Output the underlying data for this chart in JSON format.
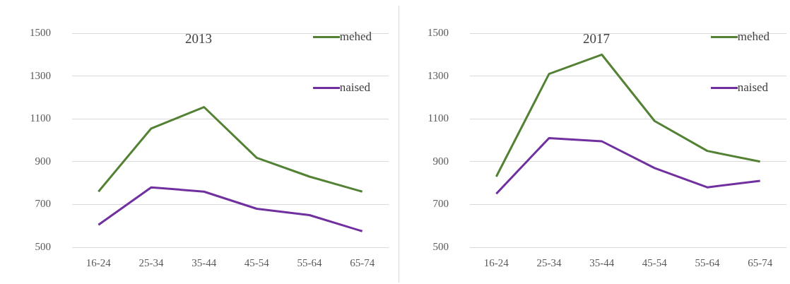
{
  "chart_data": [
    {
      "type": "line",
      "title": "2013",
      "categories": [
        "16-24",
        "25-34",
        "35-44",
        "45-54",
        "55-64",
        "65-74"
      ],
      "series": [
        {
          "name": "mehed",
          "color": "#548235",
          "values": [
            760,
            1055,
            1155,
            918,
            830,
            760
          ]
        },
        {
          "name": "naised",
          "color": "#7030a0",
          "values": [
            605,
            780,
            760,
            680,
            650,
            575
          ]
        }
      ],
      "ylim": [
        500,
        1500
      ],
      "yticks": [
        500,
        700,
        900,
        1100,
        1300,
        1500
      ],
      "grid": "y",
      "legend": "top right",
      "marker": "none",
      "line_style": "solid"
    },
    {
      "type": "line",
      "title": "2017",
      "categories": [
        "16-24",
        "25-34",
        "35-44",
        "45-54",
        "55-64",
        "65-74"
      ],
      "series": [
        {
          "name": "mehed",
          "color": "#548235",
          "values": [
            830,
            1310,
            1400,
            1090,
            950,
            900
          ]
        },
        {
          "name": "naised",
          "color": "#7030a0",
          "values": [
            750,
            1010,
            995,
            870,
            780,
            810
          ]
        }
      ],
      "ylim": [
        500,
        1500
      ],
      "yticks": [
        500,
        700,
        900,
        1100,
        1300,
        1500
      ],
      "grid": "y",
      "legend": "top right",
      "marker": "none",
      "line_style": "solid"
    }
  ]
}
